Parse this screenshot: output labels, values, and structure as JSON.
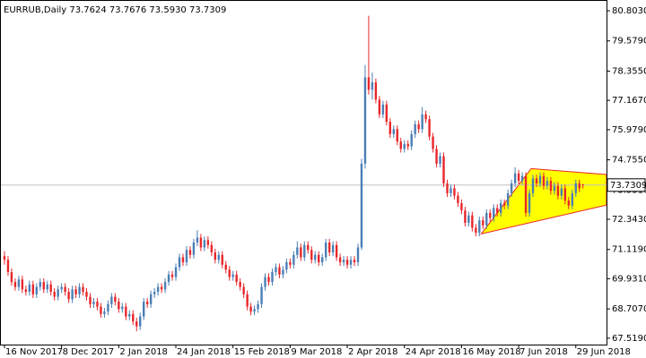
{
  "chart_data": {
    "type": "candlestick",
    "header": "EURRUB,Daily  73.7624 73.7676 73.5930 73.7309",
    "up_color": "#4a7eb5",
    "down_color": "#e8262a",
    "current_price": {
      "value": 73.7309,
      "label": "73.7309"
    },
    "xlim": [
      -1.25,
      168.6
    ],
    "xticks": [
      {
        "value": 0,
        "label": "16 Nov 2017"
      },
      {
        "value": 16,
        "label": "8 Dec 2017"
      },
      {
        "value": 32,
        "label": "2 Jan 2018"
      },
      {
        "value": 48,
        "label": "24 Jan 2018"
      },
      {
        "value": 64,
        "label": "15 Feb 2018"
      },
      {
        "value": 80,
        "label": "9 Mar 2018"
      },
      {
        "value": 96,
        "label": "2 Apr 2018"
      },
      {
        "value": 112,
        "label": "24 Apr 2018"
      },
      {
        "value": 128,
        "label": "16 May 2018"
      },
      {
        "value": 144,
        "label": "7 Jun 2018"
      },
      {
        "value": 160,
        "label": "29 Jun 2018"
      }
    ],
    "ylim": [
      67.26,
      81.24
    ],
    "yticks": [
      {
        "value": 80.803,
        "label": "80.8030"
      },
      {
        "value": 79.579,
        "label": "79.5790"
      },
      {
        "value": 78.355,
        "label": "78.3550"
      },
      {
        "value": 77.167,
        "label": "77.1670"
      },
      {
        "value": 75.979,
        "label": "75.9790"
      },
      {
        "value": 74.755,
        "label": "74.7550"
      },
      {
        "value": 73.531,
        "label": "73.5310"
      },
      {
        "value": 72.343,
        "label": "72.3430"
      },
      {
        "value": 71.119,
        "label": "71.1190"
      },
      {
        "value": 69.931,
        "label": "69.9310"
      },
      {
        "value": 68.707,
        "label": "68.7070"
      },
      {
        "value": 67.519,
        "label": "67.5190"
      }
    ],
    "triangle": {
      "color": "#ffff00",
      "edge": "#e8262a",
      "points": [
        [
          133.5,
          71.75
        ],
        [
          147.5,
          74.4
        ],
        [
          168.6,
          74.16
        ],
        [
          168.6,
          72.92
        ]
      ]
    },
    "series": [
      {
        "name": "EURRUB,Daily",
        "values": [
          [
            70.85,
            71.05,
            70.5,
            70.7
          ],
          [
            70.7,
            70.85,
            70.05,
            70.2
          ],
          [
            70.2,
            70.35,
            69.65,
            69.8
          ],
          [
            69.8,
            69.95,
            69.45,
            69.6
          ],
          [
            69.6,
            70.05,
            69.45,
            69.9
          ],
          [
            69.9,
            70.05,
            69.35,
            69.5
          ],
          [
            69.5,
            69.65,
            69.25,
            69.4
          ],
          [
            69.4,
            69.85,
            69.25,
            69.7
          ],
          [
            69.7,
            69.85,
            69.15,
            69.3
          ],
          [
            69.3,
            69.75,
            69.15,
            69.6
          ],
          [
            69.6,
            69.95,
            69.45,
            69.8
          ],
          [
            69.8,
            69.95,
            69.35,
            69.5
          ],
          [
            69.5,
            69.85,
            69.35,
            69.7
          ],
          [
            69.7,
            69.85,
            69.25,
            69.4
          ],
          [
            69.4,
            69.55,
            69.05,
            69.2
          ],
          [
            69.2,
            69.65,
            69.05,
            69.5
          ],
          [
            69.5,
            69.75,
            69.35,
            69.6
          ],
          [
            69.6,
            69.75,
            69.25,
            69.4
          ],
          [
            69.4,
            69.55,
            68.95,
            69.1
          ],
          [
            69.1,
            69.65,
            68.95,
            69.5
          ],
          [
            69.5,
            69.65,
            69.15,
            69.3
          ],
          [
            69.3,
            69.75,
            69.15,
            69.6
          ],
          [
            69.6,
            69.75,
            69.25,
            69.4
          ],
          [
            69.4,
            69.55,
            69.05,
            69.2
          ],
          [
            69.2,
            69.35,
            68.75,
            68.9
          ],
          [
            68.9,
            69.15,
            68.75,
            69.0
          ],
          [
            69.0,
            69.15,
            68.65,
            68.8
          ],
          [
            68.8,
            68.95,
            68.35,
            68.5
          ],
          [
            68.5,
            68.75,
            68.35,
            68.6
          ],
          [
            68.6,
            69.05,
            68.45,
            68.9
          ],
          [
            68.9,
            69.35,
            68.75,
            69.2
          ],
          [
            69.2,
            69.35,
            68.85,
            69.0
          ],
          [
            69.0,
            69.15,
            68.55,
            68.7
          ],
          [
            68.7,
            68.95,
            68.55,
            68.8
          ],
          [
            68.8,
            68.95,
            68.25,
            68.4
          ],
          [
            68.4,
            68.65,
            68.25,
            68.5
          ],
          [
            68.5,
            68.65,
            68.05,
            68.2
          ],
          [
            68.2,
            68.35,
            67.8,
            68.0
          ],
          [
            68.0,
            68.55,
            67.85,
            68.4
          ],
          [
            68.4,
            69.15,
            68.25,
            69.0
          ],
          [
            69.0,
            69.15,
            68.75,
            68.9
          ],
          [
            68.9,
            69.45,
            68.75,
            69.3
          ],
          [
            69.3,
            69.55,
            69.15,
            69.4
          ],
          [
            69.4,
            69.75,
            69.25,
            69.6
          ],
          [
            69.6,
            69.75,
            69.35,
            69.5
          ],
          [
            69.5,
            69.95,
            69.35,
            69.8
          ],
          [
            69.8,
            70.25,
            69.65,
            70.1
          ],
          [
            70.1,
            70.25,
            69.85,
            70.0
          ],
          [
            70.0,
            70.55,
            69.85,
            70.4
          ],
          [
            70.4,
            70.95,
            70.25,
            70.8
          ],
          [
            70.8,
            70.95,
            70.45,
            70.6
          ],
          [
            70.6,
            71.25,
            70.45,
            71.1
          ],
          [
            71.1,
            71.25,
            70.75,
            70.9
          ],
          [
            70.9,
            71.55,
            70.75,
            71.4
          ],
          [
            71.4,
            71.9,
            71.25,
            71.6
          ],
          [
            71.6,
            71.75,
            71.05,
            71.2
          ],
          [
            71.2,
            71.65,
            71.05,
            71.5
          ],
          [
            71.5,
            71.65,
            71.15,
            71.3
          ],
          [
            71.3,
            71.45,
            70.85,
            71.0
          ],
          [
            71.0,
            71.15,
            70.55,
            70.7
          ],
          [
            70.7,
            71.05,
            70.55,
            70.9
          ],
          [
            70.9,
            71.05,
            70.35,
            70.5
          ],
          [
            70.5,
            70.65,
            70.15,
            70.3
          ],
          [
            70.3,
            70.45,
            69.85,
            70.0
          ],
          [
            70.0,
            70.25,
            69.85,
            70.1
          ],
          [
            70.1,
            70.25,
            69.65,
            69.8
          ],
          [
            69.8,
            69.95,
            69.45,
            69.6
          ],
          [
            69.6,
            69.75,
            69.15,
            69.3
          ],
          [
            69.3,
            69.45,
            68.65,
            68.8
          ],
          [
            68.8,
            68.95,
            68.45,
            68.6
          ],
          [
            68.6,
            68.85,
            68.45,
            68.7
          ],
          [
            68.7,
            69.05,
            68.55,
            68.9
          ],
          [
            68.9,
            69.75,
            68.75,
            69.6
          ],
          [
            69.6,
            70.15,
            69.45,
            70.0
          ],
          [
            70.0,
            70.15,
            69.65,
            69.8
          ],
          [
            69.8,
            70.35,
            69.65,
            70.2
          ],
          [
            70.2,
            70.55,
            70.05,
            70.4
          ],
          [
            70.4,
            70.55,
            69.95,
            70.1
          ],
          [
            70.1,
            70.45,
            69.95,
            70.3
          ],
          [
            70.3,
            70.75,
            70.15,
            70.6
          ],
          [
            70.6,
            70.75,
            70.35,
            70.5
          ],
          [
            70.5,
            71.05,
            70.35,
            70.9
          ],
          [
            70.9,
            71.45,
            70.75,
            71.2
          ],
          [
            71.2,
            71.35,
            70.65,
            70.8
          ],
          [
            70.8,
            71.45,
            70.65,
            71.3
          ],
          [
            71.3,
            71.45,
            70.95,
            71.1
          ],
          [
            71.1,
            71.25,
            70.55,
            70.7
          ],
          [
            70.7,
            71.05,
            70.55,
            70.9
          ],
          [
            70.9,
            71.05,
            70.45,
            70.6
          ],
          [
            70.6,
            70.95,
            70.45,
            70.8
          ],
          [
            70.8,
            71.55,
            70.65,
            71.4
          ],
          [
            71.4,
            71.55,
            70.85,
            71.0
          ],
          [
            71.0,
            71.45,
            70.85,
            71.3
          ],
          [
            71.3,
            71.45,
            70.65,
            70.8
          ],
          [
            70.8,
            70.95,
            70.45,
            70.6
          ],
          [
            70.6,
            70.85,
            70.45,
            70.7
          ],
          [
            70.7,
            70.85,
            70.35,
            70.5
          ],
          [
            70.5,
            70.85,
            70.35,
            70.7
          ],
          [
            70.7,
            70.85,
            70.45,
            70.6
          ],
          [
            70.6,
            71.35,
            70.45,
            71.2
          ],
          [
            71.2,
            74.8,
            71.1,
            74.6
          ],
          [
            74.6,
            78.6,
            74.4,
            78.1
          ],
          [
            78.1,
            80.6,
            77.4,
            77.6
          ],
          [
            77.6,
            78.3,
            77.2,
            77.9
          ],
          [
            77.9,
            78.05,
            77.05,
            77.2
          ],
          [
            77.2,
            77.35,
            76.45,
            76.6
          ],
          [
            76.6,
            77.15,
            76.45,
            77.0
          ],
          [
            77.0,
            77.15,
            76.15,
            76.3
          ],
          [
            76.3,
            76.45,
            75.65,
            75.8
          ],
          [
            75.8,
            76.15,
            75.65,
            76.0
          ],
          [
            76.0,
            76.15,
            75.35,
            75.5
          ],
          [
            75.5,
            75.65,
            75.05,
            75.2
          ],
          [
            75.2,
            75.55,
            75.05,
            75.4
          ],
          [
            75.4,
            75.55,
            75.15,
            75.3
          ],
          [
            75.3,
            75.95,
            75.15,
            75.8
          ],
          [
            75.8,
            76.35,
            75.65,
            76.2
          ],
          [
            76.2,
            76.35,
            75.85,
            76.0
          ],
          [
            76.0,
            76.9,
            75.85,
            76.6
          ],
          [
            76.6,
            76.75,
            76.25,
            76.4
          ],
          [
            76.4,
            76.55,
            75.55,
            75.7
          ],
          [
            75.7,
            75.85,
            75.05,
            75.2
          ],
          [
            75.2,
            75.35,
            74.45,
            74.6
          ],
          [
            74.6,
            75.05,
            74.45,
            74.9
          ],
          [
            74.9,
            75.05,
            73.65,
            73.8
          ],
          [
            73.8,
            73.95,
            73.25,
            73.4
          ],
          [
            73.4,
            73.75,
            73.25,
            73.6
          ],
          [
            73.6,
            73.75,
            73.15,
            73.3
          ],
          [
            73.3,
            73.45,
            72.85,
            73.0
          ],
          [
            73.0,
            73.15,
            72.55,
            72.7
          ],
          [
            72.7,
            72.85,
            72.05,
            72.2
          ],
          [
            72.2,
            72.65,
            72.05,
            72.5
          ],
          [
            72.5,
            72.65,
            71.85,
            72.0
          ],
          [
            72.0,
            72.15,
            71.65,
            71.8
          ],
          [
            71.8,
            72.45,
            71.65,
            72.3
          ],
          [
            72.3,
            72.45,
            71.95,
            72.1
          ],
          [
            72.1,
            72.75,
            71.95,
            72.6
          ],
          [
            72.6,
            72.75,
            72.25,
            72.4
          ],
          [
            72.4,
            72.95,
            72.25,
            72.8
          ],
          [
            72.8,
            72.95,
            72.45,
            72.6
          ],
          [
            72.6,
            73.15,
            72.45,
            73.0
          ],
          [
            73.0,
            73.15,
            72.75,
            72.9
          ],
          [
            72.9,
            73.55,
            72.75,
            73.4
          ],
          [
            73.4,
            73.95,
            73.25,
            73.8
          ],
          [
            73.8,
            74.45,
            73.65,
            74.2
          ],
          [
            74.2,
            74.35,
            73.75,
            73.9
          ],
          [
            73.9,
            74.25,
            73.75,
            74.1
          ],
          [
            74.1,
            74.25,
            72.45,
            72.6
          ],
          [
            72.6,
            73.55,
            72.45,
            73.4
          ],
          [
            73.4,
            74.15,
            73.25,
            74.0
          ],
          [
            74.0,
            74.15,
            73.65,
            73.8
          ],
          [
            73.8,
            74.25,
            73.65,
            74.1
          ],
          [
            74.1,
            74.25,
            73.55,
            73.7
          ],
          [
            73.7,
            74.05,
            73.55,
            73.9
          ],
          [
            73.9,
            74.05,
            73.35,
            73.5
          ],
          [
            73.5,
            73.85,
            73.35,
            73.7
          ],
          [
            73.7,
            73.85,
            73.15,
            73.3
          ],
          [
            73.3,
            73.75,
            73.15,
            73.6
          ],
          [
            73.6,
            73.75,
            72.95,
            73.1
          ],
          [
            73.1,
            73.25,
            72.75,
            72.9
          ],
          [
            72.9,
            73.55,
            72.75,
            73.4
          ],
          [
            73.4,
            73.95,
            73.25,
            73.8
          ],
          [
            73.8,
            73.95,
            73.45,
            73.6
          ],
          [
            73.7624,
            73.7676,
            73.593,
            73.7309
          ]
        ]
      }
    ]
  }
}
